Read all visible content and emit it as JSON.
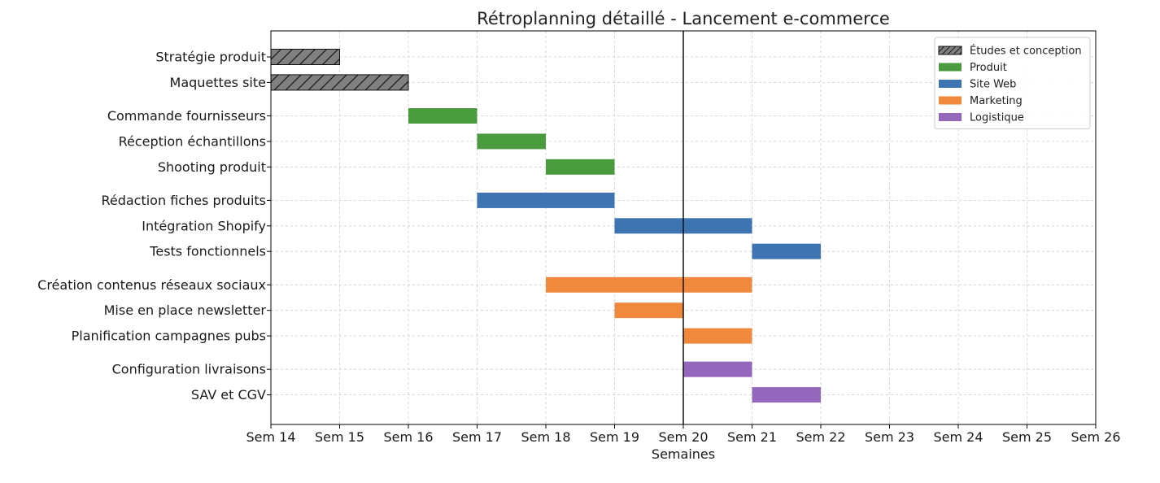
{
  "chart_data": {
    "type": "gantt",
    "title": "Rétroplanning détaillé - Lancement e-commerce",
    "xlabel": "Semaines",
    "ylabel": "",
    "xlim": [
      14,
      26
    ],
    "xtick_values": [
      14,
      15,
      16,
      17,
      18,
      19,
      20,
      21,
      22,
      23,
      24,
      25,
      26
    ],
    "xtick_labels": [
      "Sem 14",
      "Sem 15",
      "Sem 16",
      "Sem 17",
      "Sem 18",
      "Sem 19",
      "Sem 20",
      "Sem 21",
      "Sem 22",
      "Sem 23",
      "Sem 24",
      "Sem 25",
      "Sem 26"
    ],
    "grid": true,
    "today_marker": 20,
    "legend_position": "top-right",
    "categories": [
      {
        "name": "Études et conception",
        "color": "#808080",
        "hatch": true
      },
      {
        "name": "Produit",
        "color": "#4a9a3e",
        "hatch": false
      },
      {
        "name": "Site Web",
        "color": "#3d74b1",
        "hatch": false
      },
      {
        "name": "Marketing",
        "color": "#f0893b",
        "hatch": false
      },
      {
        "name": "Logistique",
        "color": "#9467bd",
        "hatch": false
      }
    ],
    "tasks": [
      {
        "label": "Stratégie produit",
        "start": 14,
        "end": 15,
        "category": 0
      },
      {
        "label": "Maquettes site",
        "start": 14,
        "end": 16,
        "category": 0
      },
      {
        "label": "Commande fournisseurs",
        "start": 16,
        "end": 17,
        "category": 1
      },
      {
        "label": "Réception échantillons",
        "start": 17,
        "end": 18,
        "category": 1
      },
      {
        "label": "Shooting produit",
        "start": 18,
        "end": 19,
        "category": 1
      },
      {
        "label": "Rédaction fiches produits",
        "start": 17,
        "end": 19,
        "category": 2
      },
      {
        "label": "Intégration Shopify",
        "start": 19,
        "end": 21,
        "category": 2
      },
      {
        "label": "Tests fonctionnels",
        "start": 21,
        "end": 22,
        "category": 2
      },
      {
        "label": "Création contenus réseaux sociaux",
        "start": 18,
        "end": 21,
        "category": 3
      },
      {
        "label": "Mise en place newsletter",
        "start": 19,
        "end": 20,
        "category": 3
      },
      {
        "label": "Planification campagnes pubs",
        "start": 20,
        "end": 21,
        "category": 3
      },
      {
        "label": "Configuration livraisons",
        "start": 20,
        "end": 21,
        "category": 4
      },
      {
        "label": "SAV et CGV",
        "start": 21,
        "end": 22,
        "category": 4
      }
    ]
  }
}
